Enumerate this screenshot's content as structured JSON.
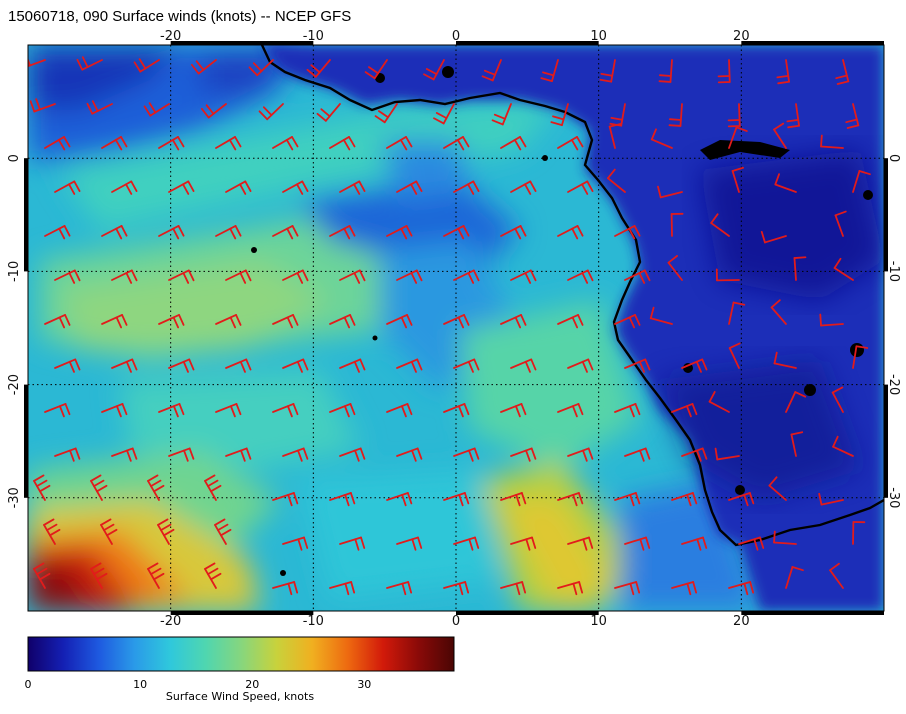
{
  "title": "15060718, 090 Surface winds (knots) -- NCEP GFS",
  "map": {
    "lon_range": [
      -30,
      30
    ],
    "lat_range": [
      -40,
      10
    ],
    "lon_ticks": [
      "-20",
      "-10",
      "0",
      "10",
      "20"
    ],
    "lat_ticks": [
      "0",
      "-10",
      "-20",
      "-30"
    ],
    "lon_tick_values": [
      -20,
      -10,
      0,
      10,
      20
    ],
    "lat_tick_values": [
      0,
      -10,
      -20,
      -30
    ],
    "grid": "dotted",
    "land_color": "#1e2fb8",
    "ocean_base_color": "#2bb8d4",
    "barb_color": "#e21b1b"
  },
  "colorbar": {
    "title": "Surface Wind Speed, knots",
    "min": 0,
    "max": 38,
    "ticks": [
      "0",
      "10",
      "20",
      "30"
    ],
    "tick_values": [
      0,
      10,
      20,
      30
    ],
    "colors": [
      "#10006a",
      "#1420b4",
      "#1e5ae0",
      "#2a9ae8",
      "#2fc8dc",
      "#4fd6b0",
      "#86d67e",
      "#c8d23c",
      "#f0b020",
      "#ee6a10",
      "#d21a0a",
      "#8a0a08",
      "#4a0604"
    ]
  }
}
